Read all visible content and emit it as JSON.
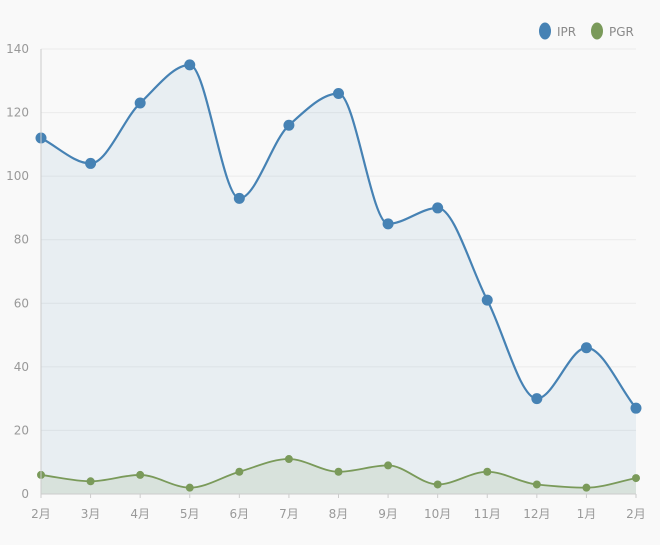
{
  "chart_data": {
    "type": "line",
    "categories": [
      "2月",
      "3月",
      "4月",
      "5月",
      "6月",
      "7月",
      "8月",
      "9月",
      "10月",
      "11月",
      "12月",
      "1月",
      "2月"
    ],
    "series": [
      {
        "name": "IPR",
        "color": "#4682b4",
        "values": [
          112,
          104,
          123,
          135,
          93,
          116,
          126,
          85,
          90,
          61,
          30,
          46,
          27
        ]
      },
      {
        "name": "PGR",
        "color": "#7a9a5a",
        "values": [
          6,
          4,
          6,
          2,
          7,
          11,
          7,
          9,
          3,
          7,
          3,
          2,
          5
        ]
      }
    ],
    "ylim": [
      0,
      140
    ],
    "yticks": [
      0,
      20,
      40,
      60,
      80,
      100,
      120,
      140
    ],
    "grid": true,
    "legend_position": "top-right",
    "smooth": true,
    "area_fill": true
  }
}
